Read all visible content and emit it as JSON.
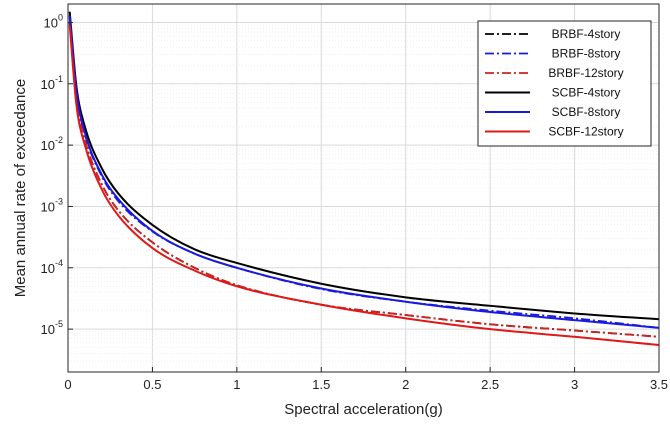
{
  "chart_data": {
    "type": "line",
    "xlabel": "Spectral acceleration(g)",
    "ylabel": "Mean annual rate of exceedance",
    "xlim": [
      0,
      3.5
    ],
    "ylim": [
      2e-06,
      2
    ],
    "yscale": "log",
    "grid": true,
    "legend_position": "top-right",
    "x_ticks": [
      0,
      0.5,
      1,
      1.5,
      2,
      2.5,
      3,
      3.5
    ],
    "x_tick_labels": [
      "0",
      "0.5",
      "1",
      "1.5",
      "2",
      "2.5",
      "3",
      "3.5"
    ],
    "y_ticks": [
      1e-05,
      0.0001,
      0.001,
      0.01,
      0.1,
      1
    ],
    "y_tick_labels": [
      {
        "base": "10",
        "exp": "-5"
      },
      {
        "base": "10",
        "exp": "-4"
      },
      {
        "base": "10",
        "exp": "-3"
      },
      {
        "base": "10",
        "exp": "-2"
      },
      {
        "base": "10",
        "exp": "-1"
      },
      {
        "base": "10",
        "exp": "0"
      }
    ],
    "series": [
      {
        "name": "BRBF-4story",
        "color": "#000000",
        "style": "dashdot",
        "x": [
          0.01,
          0.05,
          0.1,
          0.2,
          0.3,
          0.5,
          0.75,
          1,
          1.5,
          2,
          2.5,
          3,
          3.5
        ],
        "y": [
          1.0,
          0.055,
          0.012,
          0.0023,
          0.00085,
          0.00026,
          0.0001,
          5.2e-05,
          2.5e-05,
          1.7e-05,
          1.2e-05,
          9.5e-06,
          7.5e-06
        ]
      },
      {
        "name": "BRBF-8story",
        "color": "#1a1adf",
        "style": "dashdot",
        "x": [
          0.01,
          0.05,
          0.1,
          0.2,
          0.3,
          0.5,
          0.75,
          1,
          1.5,
          2,
          2.5,
          3,
          3.5
        ],
        "y": [
          1.2,
          0.07,
          0.015,
          0.0031,
          0.0012,
          0.00039,
          0.00017,
          0.0001,
          4.5e-05,
          2.8e-05,
          2e-05,
          1.5e-05,
          1.05e-05
        ]
      },
      {
        "name": "BRBF-12story",
        "color": "#d42020",
        "style": "dashdot",
        "x": [
          0.01,
          0.05,
          0.1,
          0.2,
          0.3,
          0.5,
          0.75,
          1,
          1.5,
          2,
          2.5,
          3,
          3.5
        ],
        "y": [
          1.0,
          0.055,
          0.012,
          0.0023,
          0.00085,
          0.00026,
          0.0001,
          5.2e-05,
          2.5e-05,
          1.7e-05,
          1.2e-05,
          9.5e-06,
          7.5e-06
        ]
      },
      {
        "name": "SCBF-4story",
        "color": "#000000",
        "style": "solid",
        "x": [
          0.01,
          0.05,
          0.1,
          0.2,
          0.3,
          0.5,
          0.75,
          1,
          1.5,
          2,
          2.5,
          3,
          3.5
        ],
        "y": [
          1.5,
          0.09,
          0.02,
          0.0042,
          0.0016,
          0.0005,
          0.0002,
          0.00012,
          5.5e-05,
          3.3e-05,
          2.4e-05,
          1.8e-05,
          1.45e-05
        ]
      },
      {
        "name": "SCBF-8story",
        "color": "#1a1adf",
        "style": "solid",
        "x": [
          0.01,
          0.05,
          0.1,
          0.2,
          0.3,
          0.5,
          0.75,
          1,
          1.5,
          2,
          2.5,
          3,
          3.5
        ],
        "y": [
          1.3,
          0.075,
          0.016,
          0.0033,
          0.0013,
          0.0004,
          0.00017,
          0.0001,
          4.6e-05,
          2.8e-05,
          1.9e-05,
          1.4e-05,
          1.05e-05
        ]
      },
      {
        "name": "SCBF-12story",
        "color": "#e01818",
        "style": "solid",
        "x": [
          0.01,
          0.05,
          0.1,
          0.2,
          0.3,
          0.5,
          0.75,
          1,
          1.5,
          2,
          2.5,
          3,
          3.5
        ],
        "y": [
          0.9,
          0.045,
          0.01,
          0.0019,
          0.0007,
          0.00021,
          9e-05,
          5e-05,
          2.5e-05,
          1.5e-05,
          1e-05,
          7.5e-06,
          5.5e-06
        ]
      }
    ]
  }
}
